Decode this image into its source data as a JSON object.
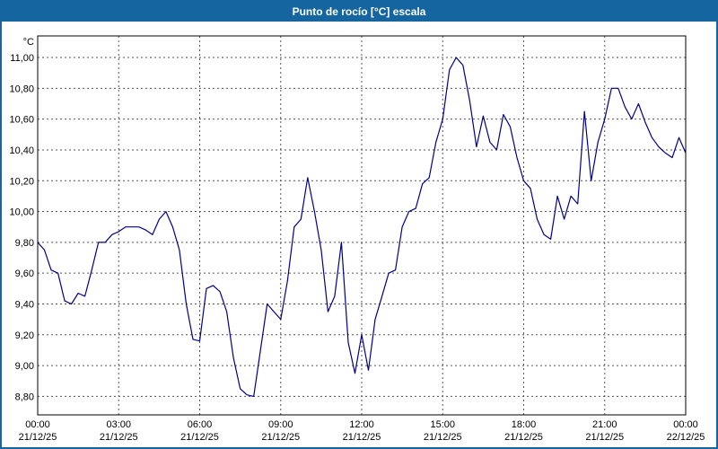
{
  "window": {
    "title": "Punto de rocío [°C] escala"
  },
  "colors": {
    "title_bar": "#1565A0",
    "frame_border": "#1565A0",
    "line": "#00008B",
    "grid": "#555555",
    "plot_border": "#000000",
    "background": "#FFFFFF",
    "title_text": "#FFFFFF",
    "label_text": "#000000"
  },
  "chart_data": {
    "type": "line",
    "title": "Punto de rocío [°C] escala",
    "ylabel_unit": "°C",
    "grid": true,
    "legend": false,
    "ylim": [
      8.68,
      11.14
    ],
    "y_tick_values": [
      11.0,
      10.8,
      10.6,
      10.4,
      10.2,
      10.0,
      9.8,
      9.6,
      9.4,
      9.2,
      9.0,
      8.8
    ],
    "y_tick_labels": [
      "11,00",
      "10,80",
      "10,60",
      "10,40",
      "10,20",
      "10,00",
      "9,80",
      "9,60",
      "9,40",
      "9,20",
      "9,00",
      "8,80"
    ],
    "xlim_hours": [
      0,
      24
    ],
    "x_ticks_hours": [
      0,
      3,
      6,
      9,
      12,
      15,
      18,
      21,
      24
    ],
    "x_tick_times": [
      "00:00",
      "03:00",
      "06:00",
      "09:00",
      "12:00",
      "15:00",
      "18:00",
      "21:00",
      "00:00"
    ],
    "x_tick_dates": [
      "21/12/25",
      "21/12/25",
      "21/12/25",
      "21/12/25",
      "21/12/25",
      "21/12/25",
      "21/12/25",
      "21/12/25",
      "22/12/25"
    ],
    "sampling_minutes": 15,
    "series": [
      {
        "name": "Punto de rocío",
        "color": "#00008B",
        "start_hour": 0,
        "step_hours": 0.25,
        "values": [
          9.8,
          9.75,
          9.62,
          9.6,
          9.42,
          9.4,
          9.47,
          9.45,
          9.62,
          9.8,
          9.8,
          9.85,
          9.87,
          9.9,
          9.9,
          9.9,
          9.88,
          9.85,
          9.95,
          10.0,
          9.9,
          9.75,
          9.4,
          9.17,
          9.16,
          9.5,
          9.52,
          9.48,
          9.35,
          9.05,
          8.85,
          8.81,
          8.8,
          9.1,
          9.4,
          9.35,
          9.3,
          9.55,
          9.9,
          9.95,
          10.22,
          10.0,
          9.75,
          9.35,
          9.45,
          9.8,
          9.15,
          8.95,
          9.2,
          8.97,
          9.3,
          9.45,
          9.6,
          9.62,
          9.9,
          10.0,
          10.02,
          10.18,
          10.22,
          10.45,
          10.6,
          10.92,
          11.0,
          10.95,
          10.72,
          10.42,
          10.62,
          10.45,
          10.4,
          10.63,
          10.55,
          10.35,
          10.2,
          10.15,
          9.95,
          9.85,
          9.82,
          10.1,
          9.95,
          10.1,
          10.05,
          10.65,
          10.2,
          10.45,
          10.6,
          10.8,
          10.8,
          10.68,
          10.6,
          10.7,
          10.58,
          10.48,
          10.42,
          10.38,
          10.35,
          10.48,
          10.38
        ]
      }
    ]
  }
}
